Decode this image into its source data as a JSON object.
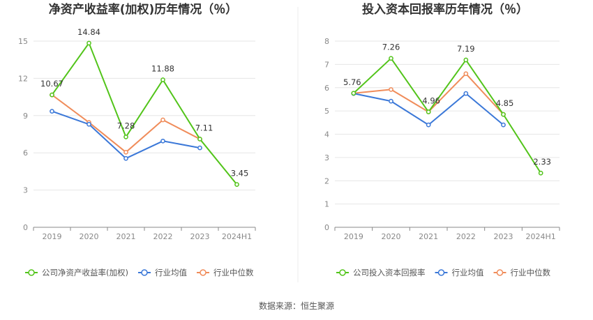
{
  "source_text": "数据来源：恒生聚源",
  "chart_data": [
    {
      "type": "line",
      "title": "净资产收益率(加权)历年情况（％）",
      "categories": [
        "2019",
        "2020",
        "2021",
        "2022",
        "2023",
        "2024H1"
      ],
      "ylim": [
        0,
        15
      ],
      "yticks": [
        0,
        3,
        6,
        9,
        12,
        15
      ],
      "grid": true,
      "legend_position": "bottom",
      "series": [
        {
          "name": "公司净资产收益率(加权)",
          "color": "#52c41a",
          "values": [
            10.67,
            14.84,
            7.28,
            11.88,
            7.11,
            3.45
          ],
          "labels": [
            "10.67",
            "14.84",
            "7.28",
            "11.88",
            "7.11",
            "3.45"
          ]
        },
        {
          "name": "行业均值",
          "color": "#3b78d8",
          "values": [
            9.35,
            8.3,
            5.55,
            6.95,
            6.4,
            null
          ]
        },
        {
          "name": "行业中位数",
          "color": "#f08c5a",
          "values": [
            10.67,
            8.45,
            6.05,
            8.65,
            7.11,
            null
          ]
        }
      ]
    },
    {
      "type": "line",
      "title": "投入资本回报率历年情况（％）",
      "categories": [
        "2019",
        "2020",
        "2021",
        "2022",
        "2023",
        "2024H1"
      ],
      "ylim": [
        0,
        8
      ],
      "yticks": [
        0,
        1,
        2,
        3,
        4,
        5,
        6,
        7,
        8
      ],
      "grid": true,
      "legend_position": "bottom",
      "series": [
        {
          "name": "公司投入资本回报率",
          "color": "#52c41a",
          "values": [
            5.76,
            7.26,
            4.96,
            7.19,
            4.85,
            2.33
          ],
          "labels": [
            "5.76",
            "7.26",
            "4.96",
            "7.19",
            "4.85",
            "2.33"
          ]
        },
        {
          "name": "行业均值",
          "color": "#3b78d8",
          "values": [
            5.75,
            5.42,
            4.4,
            5.75,
            4.4,
            null
          ]
        },
        {
          "name": "行业中位数",
          "color": "#f08c5a",
          "values": [
            5.76,
            5.92,
            4.96,
            6.6,
            4.85,
            null
          ]
        }
      ]
    }
  ]
}
